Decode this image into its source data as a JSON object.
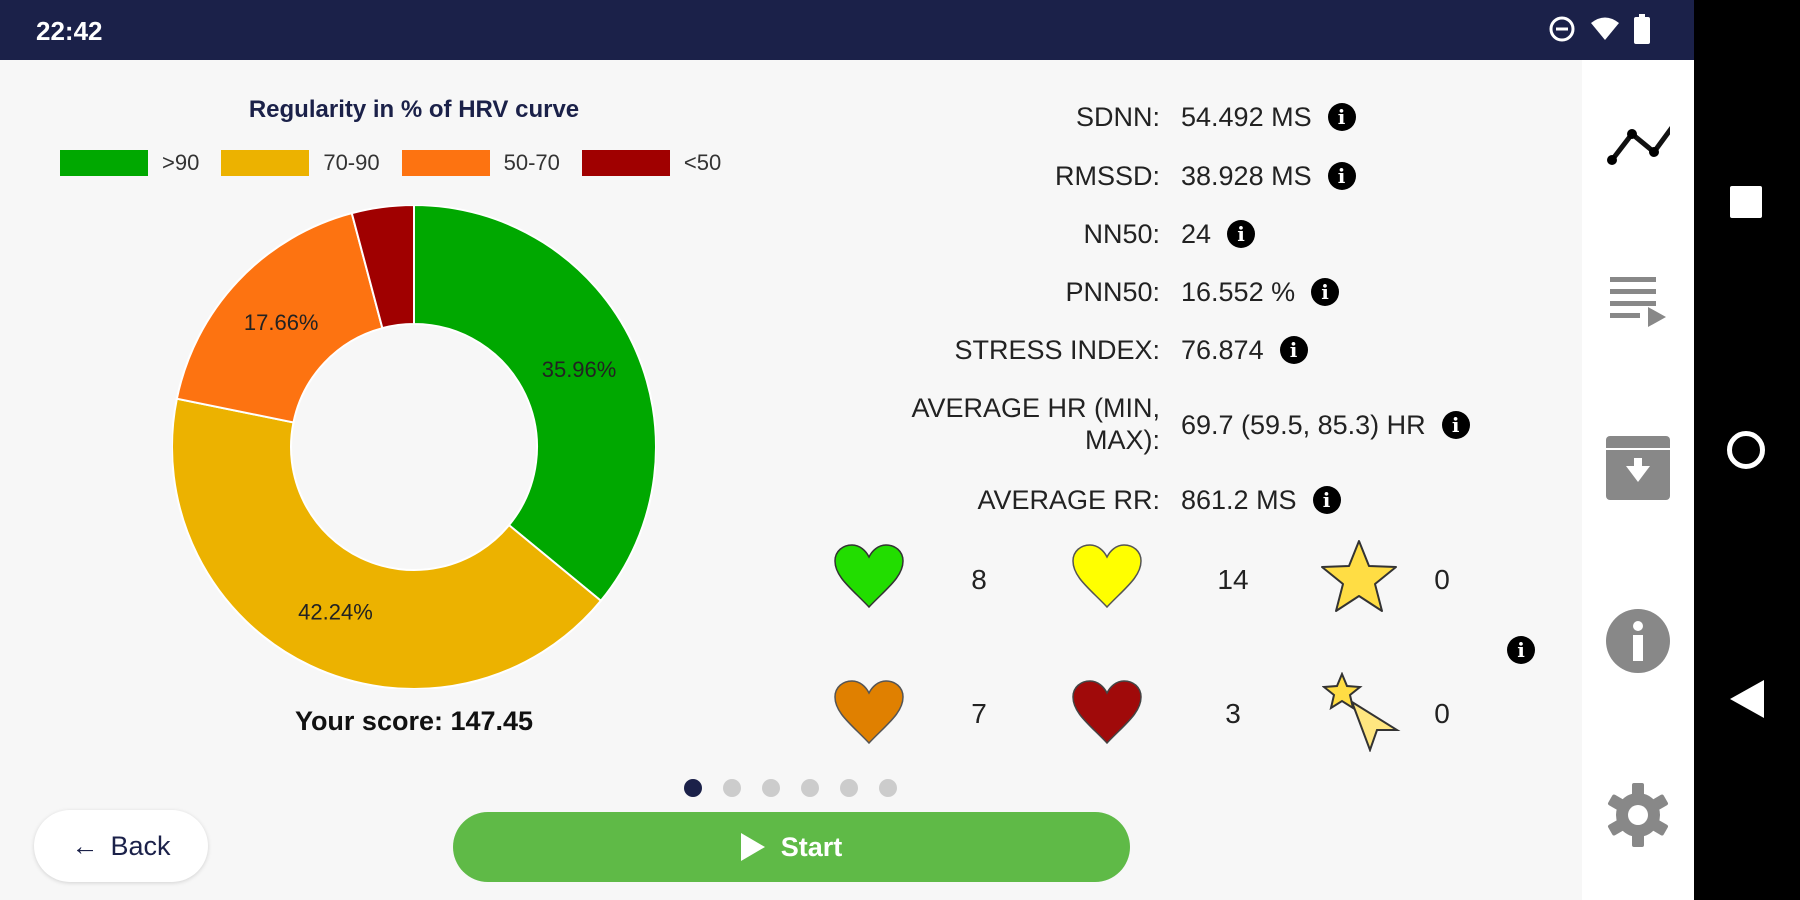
{
  "status_bar": {
    "time": "22:42",
    "icons": [
      "do-not-disturb-icon",
      "wifi-icon",
      "battery-icon"
    ]
  },
  "chart_data": {
    "type": "pie",
    "title": "Regularity in % of HRV curve",
    "categories": [
      ">90",
      "70-90",
      "50-70",
      "<50"
    ],
    "values": [
      35.96,
      42.24,
      17.66,
      4.14
    ],
    "labels": [
      "35.96%",
      "42.24%",
      "17.66%",
      ""
    ],
    "colors": [
      "#00a800",
      "#ecb200",
      "#fd7311",
      "#a00000"
    ],
    "legend": "top",
    "donut": true
  },
  "score": "Your score: 147.45",
  "stats": [
    {
      "label": "SDNN:",
      "value": "54.492 MS"
    },
    {
      "label": "RMSSD:",
      "value": "38.928 MS"
    },
    {
      "label": "NN50:",
      "value": "24"
    },
    {
      "label": "PNN50:",
      "value": "16.552 %"
    },
    {
      "label": "STRESS INDEX:",
      "value": "76.874"
    },
    {
      "label": "AVERAGE HR (MIN, MAX):",
      "value": "69.7 (59.5, 85.3) HR"
    },
    {
      "label": "AVERAGE RR:",
      "value": "861.2 MS"
    }
  ],
  "counters": [
    {
      "icon": "green-heart-icon",
      "color": "#22dd00",
      "count": "8"
    },
    {
      "icon": "yellow-heart-icon",
      "color": "#ffff00",
      "count": "14"
    },
    {
      "icon": "star-icon",
      "color": "#ffdd44",
      "count": "0"
    },
    {
      "icon": "orange-heart-icon",
      "color": "#e08000",
      "count": "7"
    },
    {
      "icon": "red-heart-icon",
      "color": "#a00a0a",
      "count": "3"
    },
    {
      "icon": "shooting-star-icon",
      "color": "#ffdd44",
      "count": "0"
    }
  ],
  "pager": {
    "pages": 6,
    "current": 1
  },
  "buttons": {
    "back": "Back",
    "start": "Start"
  },
  "sidebar": [
    "chart-line-icon",
    "playlist-icon",
    "download-box-icon",
    "info-icon",
    "settings-icon"
  ]
}
